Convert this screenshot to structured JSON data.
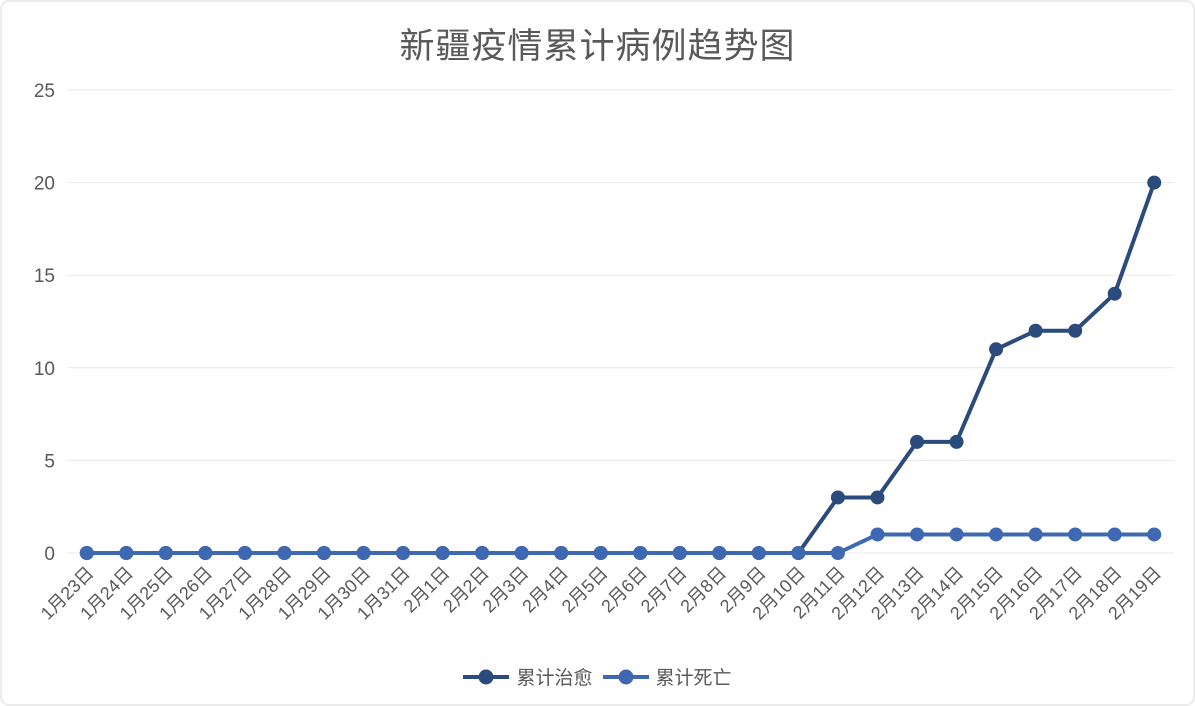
{
  "window": {
    "background": "#ffffff",
    "border_color": "#ececec"
  },
  "chart_data": {
    "type": "line",
    "title": "新疆疫情累计病例趋势图",
    "title_color": "#595959",
    "xlabel": "",
    "ylabel": "",
    "categories": [
      "1月23日",
      "1月24日",
      "1月25日",
      "1月26日",
      "1月27日",
      "1月28日",
      "1月29日",
      "1月30日",
      "1月31日",
      "2月1日",
      "2月2日",
      "2月3日",
      "2月4日",
      "2月5日",
      "2月6日",
      "2月7日",
      "2月8日",
      "2月9日",
      "2月10日",
      "2月11日",
      "2月12日",
      "2月13日",
      "2月14日",
      "2月15日",
      "2月16日",
      "2月17日",
      "2月18日",
      "2月19日"
    ],
    "series": [
      {
        "name": "累计治愈",
        "color": "#2a4b7c",
        "values": [
          0,
          0,
          0,
          0,
          0,
          0,
          0,
          0,
          0,
          0,
          0,
          0,
          0,
          0,
          0,
          0,
          0,
          0,
          0,
          3,
          3,
          6,
          6,
          11,
          12,
          12,
          14,
          20
        ]
      },
      {
        "name": "累计死亡",
        "color": "#3e68b2",
        "values": [
          0,
          0,
          0,
          0,
          0,
          0,
          0,
          0,
          0,
          0,
          0,
          0,
          0,
          0,
          0,
          0,
          0,
          0,
          0,
          0,
          1,
          1,
          1,
          1,
          1,
          1,
          1,
          1
        ]
      }
    ],
    "y_ticks": [
      0,
      5,
      10,
      15,
      20,
      25
    ],
    "ylim": [
      0,
      25
    ],
    "grid": true,
    "gridline_color": "#e9e9e9",
    "axis_label_color": "#595959",
    "legend_position": "bottom",
    "marker": "circle",
    "x_label_rotation": -45
  }
}
